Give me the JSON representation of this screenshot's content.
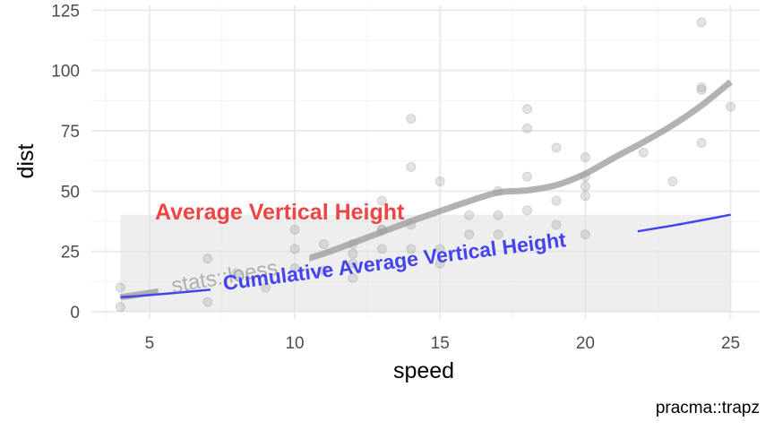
{
  "chart_data": {
    "type": "scatter",
    "xlabel": "speed",
    "ylabel": "dist",
    "caption": "pracma::trapz",
    "xlim": [
      3.0,
      26.0
    ],
    "ylim": [
      -3,
      127
    ],
    "x_ticks": [
      5,
      10,
      15,
      20,
      25
    ],
    "y_ticks": [
      0,
      25,
      50,
      75,
      100,
      125
    ],
    "grid": true,
    "points": {
      "name": "cars",
      "color": "#999999",
      "x": [
        4,
        4,
        7,
        7,
        8,
        9,
        10,
        10,
        10,
        11,
        11,
        12,
        12,
        12,
        12,
        13,
        13,
        13,
        13,
        14,
        14,
        14,
        14,
        15,
        15,
        15,
        16,
        16,
        17,
        17,
        17,
        18,
        18,
        18,
        18,
        19,
        19,
        19,
        20,
        20,
        20,
        20,
        20,
        22,
        23,
        24,
        24,
        24,
        24,
        25
      ],
      "y": [
        2,
        10,
        4,
        22,
        16,
        10,
        18,
        26,
        34,
        17,
        28,
        14,
        20,
        24,
        28,
        26,
        34,
        34,
        46,
        26,
        36,
        60,
        80,
        20,
        26,
        54,
        32,
        40,
        32,
        40,
        50,
        42,
        56,
        76,
        84,
        36,
        46,
        68,
        32,
        48,
        52,
        56,
        64,
        66,
        54,
        70,
        92,
        93,
        120,
        85
      ]
    },
    "loess": {
      "color": "#999999",
      "x": [
        4,
        5,
        6,
        7,
        8,
        9,
        10,
        11,
        12,
        13,
        14,
        15,
        16,
        17,
        18,
        19,
        20,
        21,
        22,
        23,
        24,
        25
      ],
      "y": [
        6,
        7.8,
        9.8,
        12,
        14.5,
        17.2,
        20.4,
        24.1,
        28.5,
        33,
        37.5,
        41.7,
        45.8,
        49.4,
        50.3,
        52.5,
        57.2,
        63.9,
        70.3,
        77.3,
        85.5,
        95.3
      ]
    },
    "average_height": {
      "color": "#dddddd",
      "x_range": [
        4,
        25
      ],
      "value": 40.2
    },
    "cumulative_average": {
      "color": "#4444ee",
      "x": [
        4,
        4.5,
        5,
        6,
        7,
        8,
        9,
        10,
        11,
        12,
        13,
        14,
        15,
        16,
        17,
        18,
        19,
        20,
        21,
        22,
        23,
        24,
        25
      ],
      "y": [
        6,
        6.4,
        6.9,
        7.9,
        9,
        10.2,
        11.5,
        12.8,
        14.3,
        15.9,
        17.6,
        19.5,
        21.3,
        23.2,
        25,
        26.7,
        28.3,
        30,
        31.8,
        33.7,
        35.7,
        37.9,
        40.2
      ]
    },
    "annotations": {
      "avg_label": "Average Vertical Height",
      "avg_color": "#ee4444",
      "cum_label": "Cumulative Average Vertical Height",
      "cum_color": "#4444ee",
      "loess_label": "stats::loess",
      "loess_color": "#999999"
    }
  }
}
